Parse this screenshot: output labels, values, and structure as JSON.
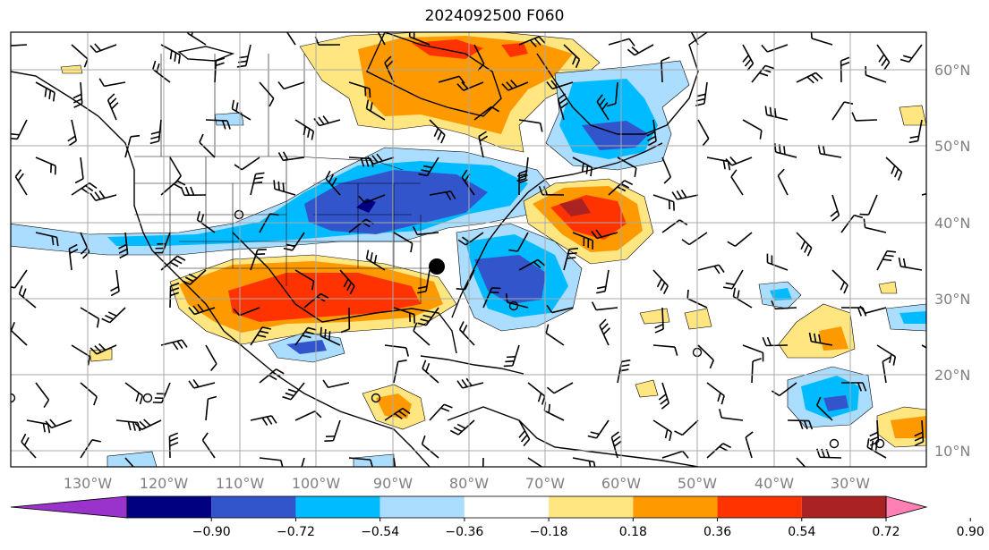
{
  "title": "2024092500 F060",
  "lon_labels": [
    "130°W",
    "120°W",
    "110°W",
    "100°W",
    "90°W",
    "80°W",
    "70°W",
    "60°W",
    "50°W",
    "40°W",
    "30°W"
  ],
  "lat_labels": [
    "60°N",
    "50°N",
    "40°N",
    "30°N",
    "20°N",
    "10°N"
  ],
  "colorbar": {
    "colors": [
      "#9933cc",
      "#000080",
      "#3355cc",
      "#00bbff",
      "#aaddff",
      "#ffffff",
      "#ffe680",
      "#ff9900",
      "#ff3300",
      "#aa2222",
      "#ff80b3"
    ],
    "ticks": [
      "−0.90",
      "−0.72",
      "−0.54",
      "−0.36",
      "−0.18",
      "0.18",
      "0.36",
      "0.54",
      "0.72",
      "0.90"
    ]
  },
  "anomaly_regions": [
    {
      "id": "canada-warm",
      "value": "0.54"
    },
    {
      "id": "gulf-warm",
      "value": "0.72"
    },
    {
      "id": "atlantic-warm",
      "value": "0.72"
    },
    {
      "id": "great-lakes-cold",
      "value": "−0.72"
    },
    {
      "id": "southeast-cold",
      "value": "−0.54"
    },
    {
      "id": "labrador-cold",
      "value": "−0.54"
    },
    {
      "id": "central-america-warm",
      "value": "0.54"
    },
    {
      "id": "east-atlantic-cold",
      "value": "−0.54"
    }
  ],
  "storm_marker": "tropical-system-dot"
}
